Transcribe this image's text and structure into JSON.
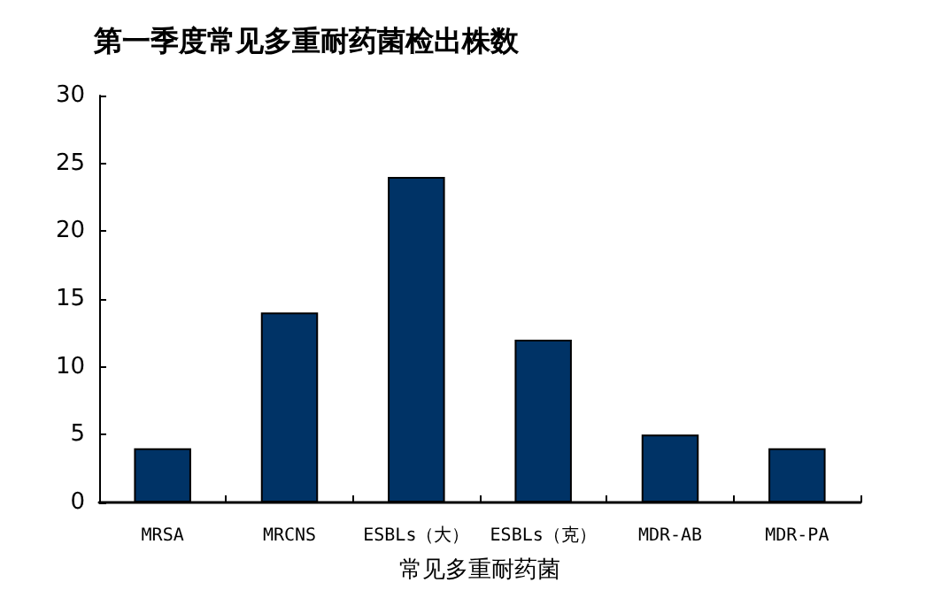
{
  "chart_data": {
    "type": "bar",
    "title": "第一季度常见多重耐药菌检出株数",
    "xlabel": "常见多重耐药菌",
    "categories": [
      "MRSA",
      "MRCNS",
      "ESBLs（大）",
      "ESBLs（克）",
      "MDR-AB",
      "MDR-PA"
    ],
    "values": [
      4,
      14,
      24,
      12,
      5,
      4
    ],
    "color": "#003366",
    "ylim": [
      0,
      30
    ],
    "yticks": [
      0,
      5,
      10,
      15,
      20,
      25,
      30
    ],
    "grid": false
  }
}
